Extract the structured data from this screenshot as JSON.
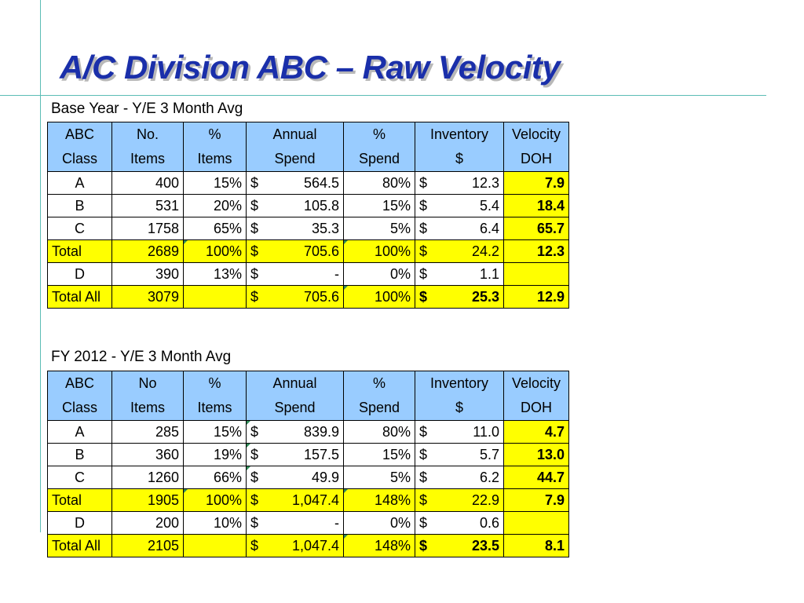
{
  "title": "A/C Division ABC – Raw Velocity",
  "table1": {
    "caption": "Base Year - Y/E 3 Month Avg",
    "headers_line1": [
      "ABC",
      "No.",
      "%",
      "Annual",
      "%",
      "Inventory",
      "Velocity"
    ],
    "headers_line2": [
      "Class",
      "Items",
      "Items",
      "Spend",
      "Spend",
      "$",
      "DOH"
    ],
    "rows": [
      {
        "class": "A",
        "items": "400",
        "pct_items": "15%",
        "spend_cur": "$",
        "spend": "564.5",
        "pct_spend": "80%",
        "inv_cur": "$",
        "inv": "12.3",
        "velocity": "7.9"
      },
      {
        "class": "B",
        "items": "531",
        "pct_items": "20%",
        "spend_cur": "$",
        "spend": "105.8",
        "pct_spend": "15%",
        "inv_cur": "$",
        "inv": "5.4",
        "velocity": "18.4"
      },
      {
        "class": "C",
        "items": "1758",
        "pct_items": "65%",
        "spend_cur": "$",
        "spend": "35.3",
        "pct_spend": "5%",
        "inv_cur": "$",
        "inv": "6.4",
        "velocity": "65.7"
      },
      {
        "class": "Total",
        "items": "2689",
        "pct_items": "100%",
        "spend_cur": "$",
        "spend": "705.6",
        "pct_spend": "100%",
        "inv_cur": "$",
        "inv": "24.2",
        "velocity": "12.3"
      },
      {
        "class": "D",
        "items": "390",
        "pct_items": "13%",
        "spend_cur": "$",
        "spend": "-",
        "pct_spend": "0%",
        "inv_cur": "$",
        "inv": "1.1",
        "velocity": ""
      },
      {
        "class": "Total All",
        "items": "3079",
        "pct_items": "",
        "spend_cur": "$",
        "spend": "705.6",
        "pct_spend": "100%",
        "inv_cur": "$",
        "inv": "25.3",
        "velocity": "12.9"
      }
    ]
  },
  "table2": {
    "caption": "FY 2012 - Y/E 3 Month Avg",
    "headers_line1": [
      "ABC",
      "No",
      "%",
      "Annual",
      "%",
      "Inventory",
      "Velocity"
    ],
    "headers_line2": [
      "Class",
      "Items",
      "Items",
      "Spend",
      "Spend",
      "$",
      "DOH"
    ],
    "rows": [
      {
        "class": "A",
        "items": "285",
        "pct_items": "15%",
        "spend_cur": "$",
        "spend": "839.9",
        "pct_spend": "80%",
        "inv_cur": "$",
        "inv": "11.0",
        "velocity": "4.7"
      },
      {
        "class": "B",
        "items": "360",
        "pct_items": "19%",
        "spend_cur": "$",
        "spend": "157.5",
        "pct_spend": "15%",
        "inv_cur": "$",
        "inv": "5.7",
        "velocity": "13.0"
      },
      {
        "class": "C",
        "items": "1260",
        "pct_items": "66%",
        "spend_cur": "$",
        "spend": "49.9",
        "pct_spend": "5%",
        "inv_cur": "$",
        "inv": "6.2",
        "velocity": "44.7"
      },
      {
        "class": "Total",
        "items": "1905",
        "pct_items": "100%",
        "spend_cur": "$",
        "spend": "1,047.4",
        "pct_spend": "148%",
        "inv_cur": "$",
        "inv": "22.9",
        "velocity": "7.9"
      },
      {
        "class": "D",
        "items": "200",
        "pct_items": "10%",
        "spend_cur": "$",
        "spend": "-",
        "pct_spend": "0%",
        "inv_cur": "$",
        "inv": "0.6",
        "velocity": ""
      },
      {
        "class": "Total All",
        "items": "2105",
        "pct_items": "",
        "spend_cur": "$",
        "spend": "1,047.4",
        "pct_spend": "148%",
        "inv_cur": "$",
        "inv": "23.5",
        "velocity": "8.1"
      }
    ]
  },
  "colors": {
    "title": "#1a2faa",
    "header_fill": "#99ccff",
    "highlight_fill": "#ffff00",
    "rule_lines": "#5bbdb5"
  }
}
